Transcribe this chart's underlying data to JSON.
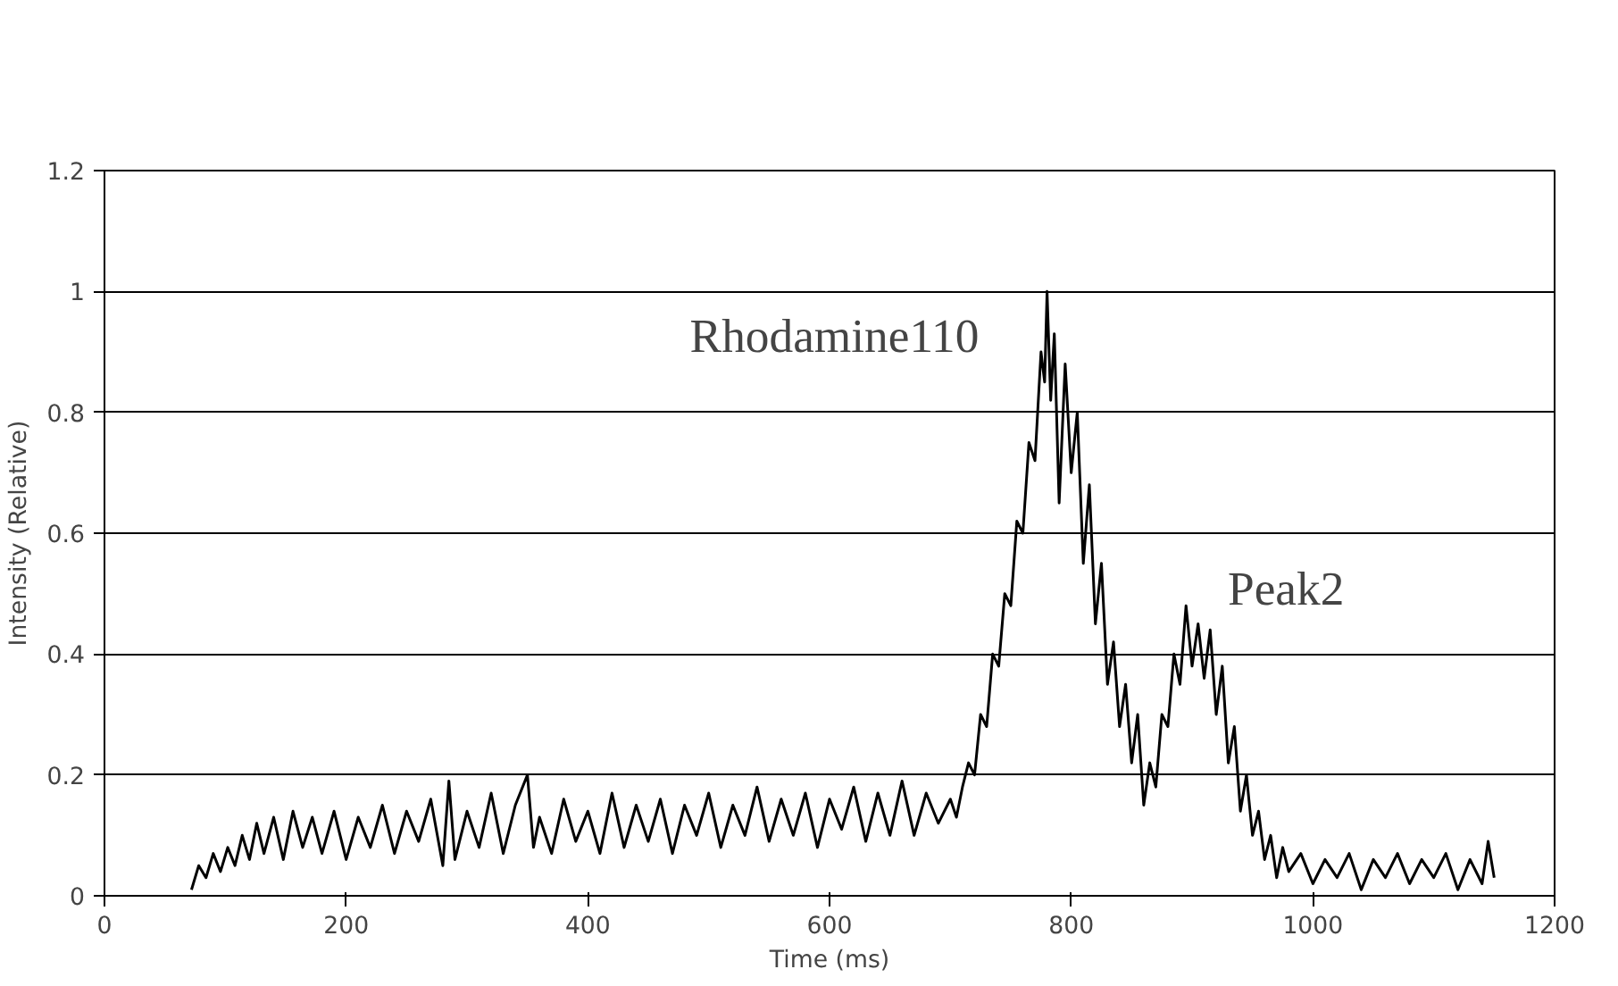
{
  "chart_data": {
    "type": "line",
    "xlabel": "Time (ms)",
    "ylabel": "Intensity (Relative)",
    "xlim": [
      0,
      1200
    ],
    "ylim": [
      0,
      1.2
    ],
    "xticks": [
      0,
      200,
      400,
      600,
      800,
      1000,
      1200
    ],
    "yticks": [
      0,
      0.2,
      0.4,
      0.6,
      0.8,
      {
        "value": 1,
        "label": "1"
      },
      1.2
    ],
    "grid": "y",
    "marker": "none",
    "line_style": "solid",
    "annotations": [
      {
        "text": "Rhodamine110",
        "x": 780,
        "y": 1.0
      },
      {
        "text": "Peak2",
        "x": 900,
        "y": 0.45
      }
    ],
    "series": [
      {
        "color": "#000000",
        "x": [
          72,
          78,
          84,
          90,
          96,
          102,
          108,
          114,
          120,
          126,
          132,
          140,
          148,
          156,
          164,
          172,
          180,
          190,
          200,
          210,
          220,
          230,
          240,
          250,
          260,
          270,
          280,
          285,
          290,
          300,
          310,
          320,
          330,
          340,
          350,
          355,
          360,
          370,
          380,
          390,
          400,
          410,
          420,
          430,
          440,
          450,
          460,
          470,
          480,
          490,
          500,
          510,
          520,
          530,
          540,
          550,
          560,
          570,
          580,
          590,
          600,
          610,
          620,
          630,
          640,
          650,
          660,
          670,
          680,
          690,
          700,
          705,
          710,
          715,
          720,
          725,
          730,
          735,
          740,
          745,
          750,
          755,
          760,
          765,
          770,
          775,
          778,
          780,
          783,
          786,
          790,
          795,
          800,
          805,
          810,
          815,
          820,
          825,
          830,
          835,
          840,
          845,
          850,
          855,
          860,
          865,
          870,
          875,
          880,
          885,
          890,
          895,
          900,
          905,
          910,
          915,
          920,
          925,
          930,
          935,
          940,
          945,
          950,
          955,
          960,
          965,
          970,
          975,
          980,
          990,
          1000,
          1010,
          1020,
          1030,
          1040,
          1050,
          1060,
          1070,
          1080,
          1090,
          1100,
          1110,
          1120,
          1130,
          1140,
          1145,
          1150
        ],
        "values": [
          0.01,
          0.05,
          0.03,
          0.07,
          0.04,
          0.08,
          0.05,
          0.1,
          0.06,
          0.12,
          0.07,
          0.13,
          0.06,
          0.14,
          0.08,
          0.13,
          0.07,
          0.14,
          0.06,
          0.13,
          0.08,
          0.15,
          0.07,
          0.14,
          0.09,
          0.16,
          0.05,
          0.19,
          0.06,
          0.14,
          0.08,
          0.17,
          0.07,
          0.15,
          0.2,
          0.08,
          0.13,
          0.07,
          0.16,
          0.09,
          0.14,
          0.07,
          0.17,
          0.08,
          0.15,
          0.09,
          0.16,
          0.07,
          0.15,
          0.1,
          0.17,
          0.08,
          0.15,
          0.1,
          0.18,
          0.09,
          0.16,
          0.1,
          0.17,
          0.08,
          0.16,
          0.11,
          0.18,
          0.09,
          0.17,
          0.1,
          0.19,
          0.1,
          0.17,
          0.12,
          0.16,
          0.13,
          0.18,
          0.22,
          0.2,
          0.3,
          0.28,
          0.4,
          0.38,
          0.5,
          0.48,
          0.62,
          0.6,
          0.75,
          0.72,
          0.9,
          0.85,
          1.0,
          0.82,
          0.93,
          0.65,
          0.88,
          0.7,
          0.8,
          0.55,
          0.68,
          0.45,
          0.55,
          0.35,
          0.42,
          0.28,
          0.35,
          0.22,
          0.3,
          0.15,
          0.22,
          0.18,
          0.3,
          0.28,
          0.4,
          0.35,
          0.48,
          0.38,
          0.45,
          0.36,
          0.44,
          0.3,
          0.38,
          0.22,
          0.28,
          0.14,
          0.2,
          0.1,
          0.14,
          0.06,
          0.1,
          0.03,
          0.08,
          0.04,
          0.07,
          0.02,
          0.06,
          0.03,
          0.07,
          0.01,
          0.06,
          0.03,
          0.07,
          0.02,
          0.06,
          0.03,
          0.07,
          0.01,
          0.06,
          0.02,
          0.09,
          0.03
        ]
      }
    ]
  }
}
